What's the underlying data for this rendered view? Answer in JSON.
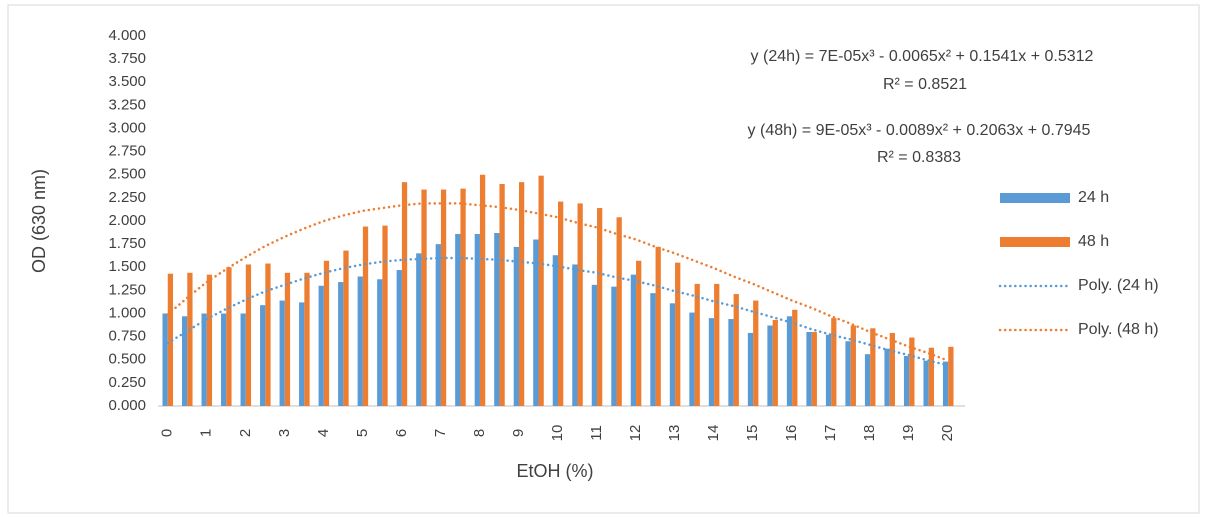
{
  "chart_data": {
    "type": "bar",
    "y_label": "OD (630 nm)",
    "x_label": "EtOH (%)",
    "annotations": [
      "y (24h) = 7E-05x³ - 0.0065x² + 0.1541x + 0.5312",
      "R² = 0.8521",
      "y (48h) = 9E-05x³ - 0.0089x² + 0.2063x + 0.7945",
      "R² = 0.8383"
    ],
    "categories": [
      "0",
      null,
      "1",
      null,
      "2",
      null,
      "3",
      null,
      "4",
      null,
      "5",
      null,
      "6",
      null,
      "7",
      null,
      "8",
      null,
      "9",
      null,
      "10",
      null,
      "11",
      null,
      "12",
      null,
      "13",
      null,
      "14",
      null,
      "15",
      null,
      "16",
      null,
      "17",
      null,
      "18",
      null,
      "19",
      null,
      "20"
    ],
    "series": [
      {
        "name": "24 h",
        "type": "bar",
        "color": "#5b9bd5",
        "values": [
          1.0,
          0.97,
          1.0,
          1.0,
          1.0,
          1.09,
          1.14,
          1.12,
          1.3,
          1.34,
          1.4,
          1.37,
          1.47,
          1.65,
          1.75,
          1.86,
          1.86,
          1.87,
          1.72,
          1.8,
          1.63,
          1.53,
          1.31,
          1.29,
          1.42,
          1.22,
          1.11,
          1.01,
          0.95,
          0.94,
          0.79,
          0.87,
          0.97,
          0.8,
          0.77,
          0.7,
          0.56,
          0.62,
          0.54,
          0.49,
          0.48
        ]
      },
      {
        "name": "48 h",
        "type": "bar",
        "color": "#ed7d31",
        "values": [
          1.43,
          1.44,
          1.42,
          1.5,
          1.53,
          1.54,
          1.44,
          1.44,
          1.57,
          1.68,
          1.94,
          1.95,
          2.42,
          2.34,
          2.34,
          2.35,
          2.5,
          2.4,
          2.42,
          2.49,
          2.21,
          2.19,
          2.14,
          2.04,
          1.57,
          1.72,
          1.55,
          1.32,
          1.32,
          1.21,
          1.14,
          0.93,
          1.04,
          0.8,
          0.95,
          0.87,
          0.84,
          0.79,
          0.74,
          0.63,
          0.64
        ]
      },
      {
        "name": "Poly. (24 h)",
        "type": "line",
        "line_style": "dotted",
        "color": "#5b9bd5",
        "values": [
          0.68,
          0.81,
          0.94,
          1.05,
          1.15,
          1.24,
          1.31,
          1.38,
          1.44,
          1.49,
          1.53,
          1.56,
          1.58,
          1.59,
          1.6,
          1.6,
          1.59,
          1.58,
          1.56,
          1.54,
          1.51,
          1.47,
          1.44,
          1.39,
          1.35,
          1.3,
          1.24,
          1.19,
          1.13,
          1.08,
          1.02,
          0.96,
          0.9,
          0.83,
          0.77,
          0.72,
          0.66,
          0.6,
          0.55,
          0.49,
          0.44
        ]
      },
      {
        "name": "Poly. (48 h)",
        "type": "line",
        "line_style": "dotted",
        "color": "#ed7d31",
        "values": [
          0.99,
          1.17,
          1.34,
          1.48,
          1.61,
          1.73,
          1.83,
          1.92,
          2.0,
          2.06,
          2.11,
          2.14,
          2.17,
          2.19,
          2.19,
          2.19,
          2.17,
          2.15,
          2.12,
          2.08,
          2.04,
          1.98,
          1.93,
          1.86,
          1.8,
          1.72,
          1.65,
          1.57,
          1.49,
          1.4,
          1.32,
          1.23,
          1.14,
          1.06,
          0.97,
          0.89,
          0.8,
          0.72,
          0.64,
          0.57,
          0.49
        ]
      }
    ],
    "ylim": [
      0,
      4
    ],
    "yticks": [
      {
        "value": 0,
        "label": "0.000"
      },
      {
        "value": 0.25,
        "label": "0.250"
      },
      {
        "value": 0.5,
        "label": "0.500"
      },
      {
        "value": 0.75,
        "label": "0.750"
      },
      {
        "value": 1,
        "label": "1.000"
      },
      {
        "value": 1.25,
        "label": "1.250"
      },
      {
        "value": 1.5,
        "label": "1.500"
      },
      {
        "value": 1.75,
        "label": "1.750"
      },
      {
        "value": 2,
        "label": "2.000"
      },
      {
        "value": 2.25,
        "label": "2.250"
      },
      {
        "value": 2.5,
        "label": "2.500"
      },
      {
        "value": 2.75,
        "label": "2.750"
      },
      {
        "value": 3,
        "label": "3.000"
      },
      {
        "value": 3.25,
        "label": "3.250"
      },
      {
        "value": 3.5,
        "label": "3.500"
      },
      {
        "value": 3.75,
        "label": "3.750"
      },
      {
        "value": 4,
        "label": "4.000"
      }
    ],
    "grid": false,
    "legend": "right"
  }
}
